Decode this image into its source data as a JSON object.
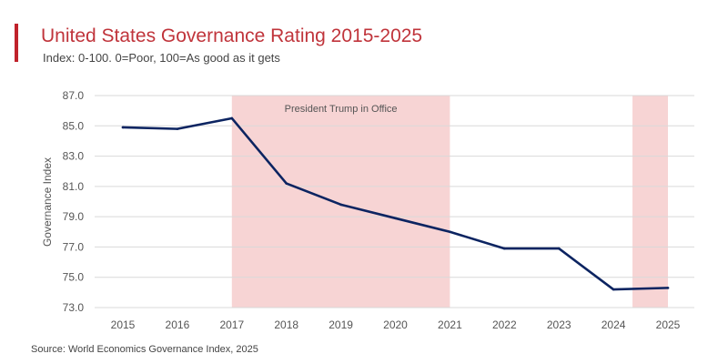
{
  "chart_data": {
    "type": "line",
    "title": "United States Governance Rating 2015-2025",
    "subtitle": "Index: 0-100. 0=Poor, 100=As good as it gets",
    "source": "Source: World Economics Governance Index, 2025",
    "xlabel": "",
    "ylabel": "Governance Index",
    "ylim": [
      73.0,
      87.0
    ],
    "yticks": [
      "73.0",
      "75.0",
      "77.0",
      "79.0",
      "81.0",
      "83.0",
      "85.0",
      "87.0"
    ],
    "x_ticks": [
      "2015",
      "2016",
      "2017",
      "2018",
      "2019",
      "2020",
      "2021",
      "2022",
      "2023",
      "2024",
      "2025"
    ],
    "grid": true,
    "series": [
      {
        "name": "Governance Index",
        "x": [
          2015,
          2016,
          2017,
          2018,
          2019,
          2020,
          2021,
          2022,
          2023,
          2024,
          2025
        ],
        "values": [
          84.9,
          84.8,
          85.5,
          81.2,
          79.8,
          78.9,
          78.0,
          76.9,
          76.9,
          74.2,
          74.3
        ]
      }
    ],
    "shaded_regions": [
      {
        "label": "President Trump in Office",
        "x_start": 2017,
        "x_end": 2021
      },
      {
        "label": "",
        "x_start": 2024.35,
        "x_end": 2025
      }
    ],
    "colors": {
      "line": "#0c2461",
      "shade": "#f7d4d4",
      "grid": "#d9d9d9",
      "accent": "#c0222b",
      "title": "#c0343b"
    }
  }
}
